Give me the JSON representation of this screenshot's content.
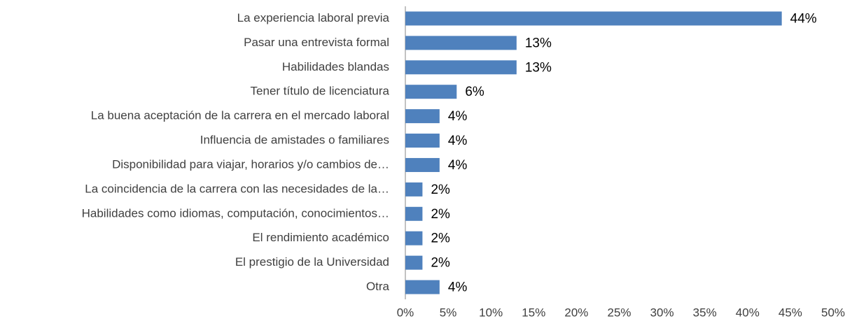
{
  "chart_data": {
    "type": "bar",
    "orientation": "horizontal",
    "categories": [
      "La experiencia laboral previa",
      "Pasar una entrevista formal",
      "Habilidades blandas",
      "Tener título de licenciatura",
      "La buena aceptación de la carrera en el mercado laboral",
      "Influencia de amistades o familiares",
      "Disponibilidad para viajar, horarios y/o cambios de…",
      "La coincidencia de la carrera con las necesidades de la…",
      "Habilidades como idiomas, computación, conocimientos…",
      "El rendimiento académico",
      "El prestigio de la Universidad",
      "Otra"
    ],
    "values": [
      44,
      13,
      13,
      6,
      4,
      4,
      4,
      2,
      2,
      2,
      2,
      4
    ],
    "value_labels": [
      "44%",
      "13%",
      "13%",
      "6%",
      "4%",
      "4%",
      "4%",
      "2%",
      "2%",
      "2%",
      "2%",
      "4%"
    ],
    "color": "#4f81bd",
    "xlim": [
      0,
      50
    ],
    "xticks": [
      {
        "value": 0,
        "label": "0%"
      },
      {
        "value": 5,
        "label": "5%"
      },
      {
        "value": 10,
        "label": "10%"
      },
      {
        "value": 15,
        "label": "15%"
      },
      {
        "value": 20,
        "label": "20%"
      },
      {
        "value": 25,
        "label": "25%"
      },
      {
        "value": 30,
        "label": "30%"
      },
      {
        "value": 35,
        "label": "35%"
      },
      {
        "value": 40,
        "label": "40%"
      },
      {
        "value": 45,
        "label": "45%"
      },
      {
        "value": 50,
        "label": "50%"
      }
    ],
    "grid": false
  }
}
